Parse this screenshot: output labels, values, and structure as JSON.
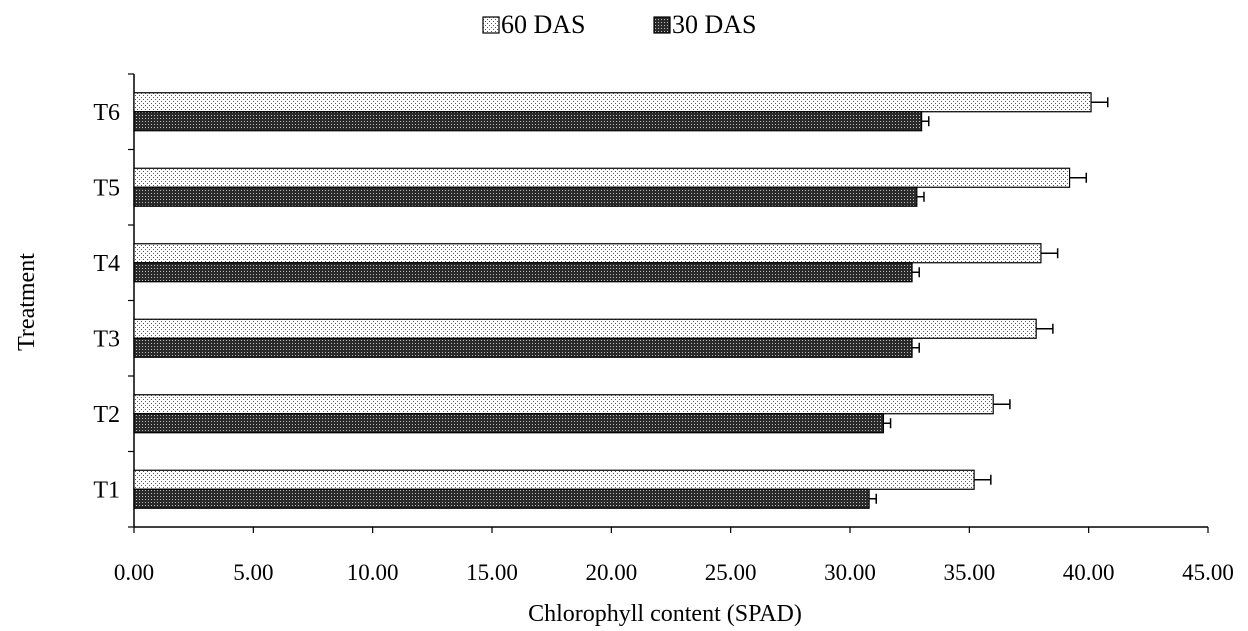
{
  "chart_data": {
    "type": "bar",
    "orientation": "horizontal",
    "categories": [
      "T1",
      "T2",
      "T3",
      "T4",
      "T5",
      "T6"
    ],
    "series": [
      {
        "name": "60 DAS",
        "values": [
          35.2,
          36.0,
          37.8,
          38.0,
          39.2,
          40.1
        ],
        "errors": [
          0.7,
          0.7,
          0.7,
          0.7,
          0.7,
          0.7
        ],
        "fill": "dotted-light"
      },
      {
        "name": "30 DAS",
        "values": [
          30.8,
          31.4,
          32.6,
          32.6,
          32.8,
          33.0
        ],
        "errors": [
          0.3,
          0.3,
          0.3,
          0.3,
          0.3,
          0.3
        ],
        "fill": "dotted-dark"
      }
    ],
    "xlabel": "Chlorophyll content (SPAD)",
    "ylabel": "Treatment",
    "xlim": [
      0,
      45
    ],
    "xticks": [
      "0.00",
      "5.00",
      "10.00",
      "15.00",
      "20.00",
      "25.00",
      "30.00",
      "35.00",
      "40.00",
      "45.00"
    ],
    "grid": false,
    "legend_position": "top-center",
    "error_bars": true
  }
}
